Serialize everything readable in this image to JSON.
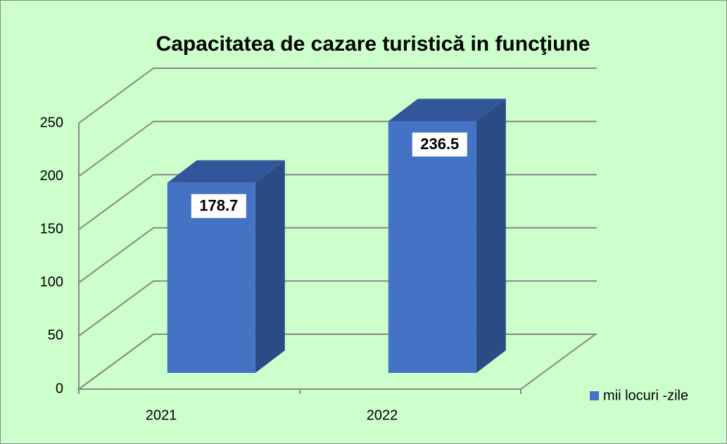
{
  "chart_data": {
    "type": "bar3d",
    "title": "Capacitatea de cazare turistică in funcţiune",
    "categories": [
      "2021",
      "2022"
    ],
    "series": [
      {
        "name": "mii locuri -zile",
        "color": "#4472c4",
        "values": [
          178.7,
          236.5
        ]
      }
    ],
    "ylim": [
      0,
      250
    ],
    "yticks": [
      0,
      50,
      100,
      150,
      200,
      250
    ],
    "grid": true,
    "legend": "right"
  }
}
